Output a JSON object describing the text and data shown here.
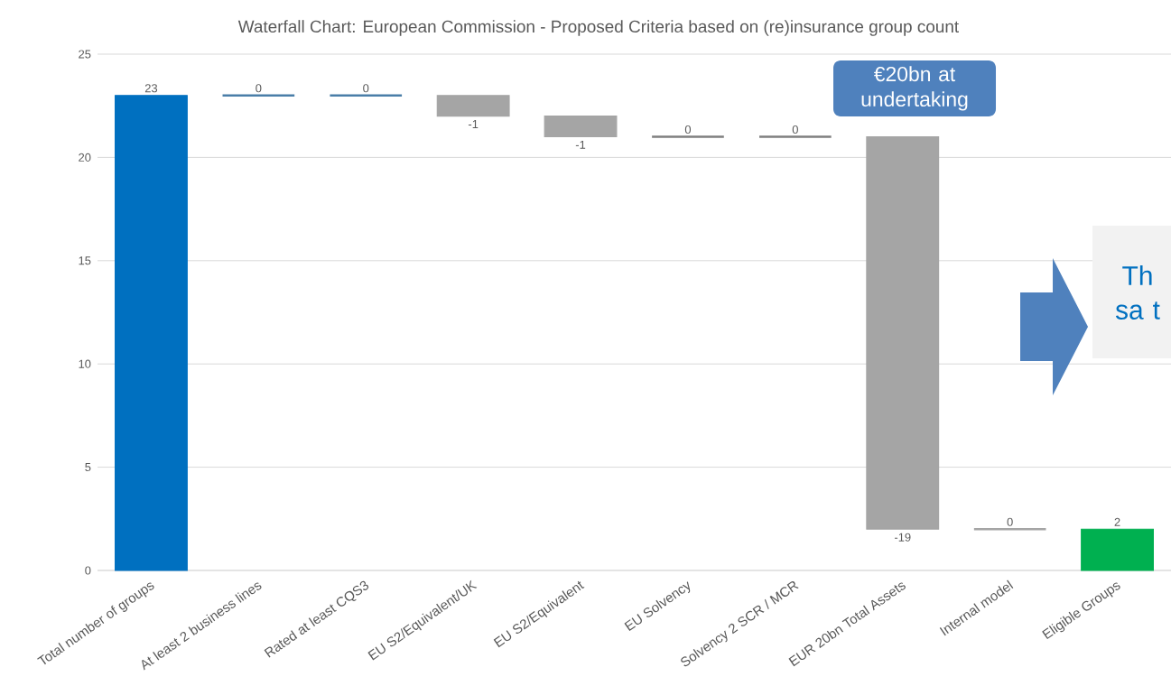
{
  "chart_data": {
    "type": "bar",
    "title": "Waterfall Chart: European Commission - Proposed Criteria based on (re)insurance group count",
    "categories": [
      "Total number of groups",
      "At least 2 business lines",
      "Rated at least CQS3",
      "EU S2/Equivalent/UK",
      "EU S2/Equivalent",
      "EU Solvency",
      "Solvency 2 SCR / MCR",
      "EUR 20bn Total Assets",
      "Internal model",
      "Eligible Groups"
    ],
    "values": [
      23,
      0,
      0,
      -1,
      -1,
      0,
      0,
      -19,
      0,
      2
    ],
    "base": [
      0,
      23,
      23,
      23,
      22,
      21,
      21,
      21,
      2,
      0
    ],
    "colors": [
      "#0070c0",
      "#4a7ea8",
      "#4a7ea8",
      "#a5a5a5",
      "#a5a5a5",
      "#7f7f7f",
      "#7f7f7f",
      "#a5a5a5",
      "#a5a5a5",
      "#00b050"
    ],
    "ylim": [
      0,
      25
    ],
    "yticks": [
      0,
      5,
      10,
      15,
      20,
      25
    ],
    "grid": "y",
    "data_labels": true,
    "annotations": [
      "€20bn at undertaking",
      "Th sa t"
    ]
  }
}
